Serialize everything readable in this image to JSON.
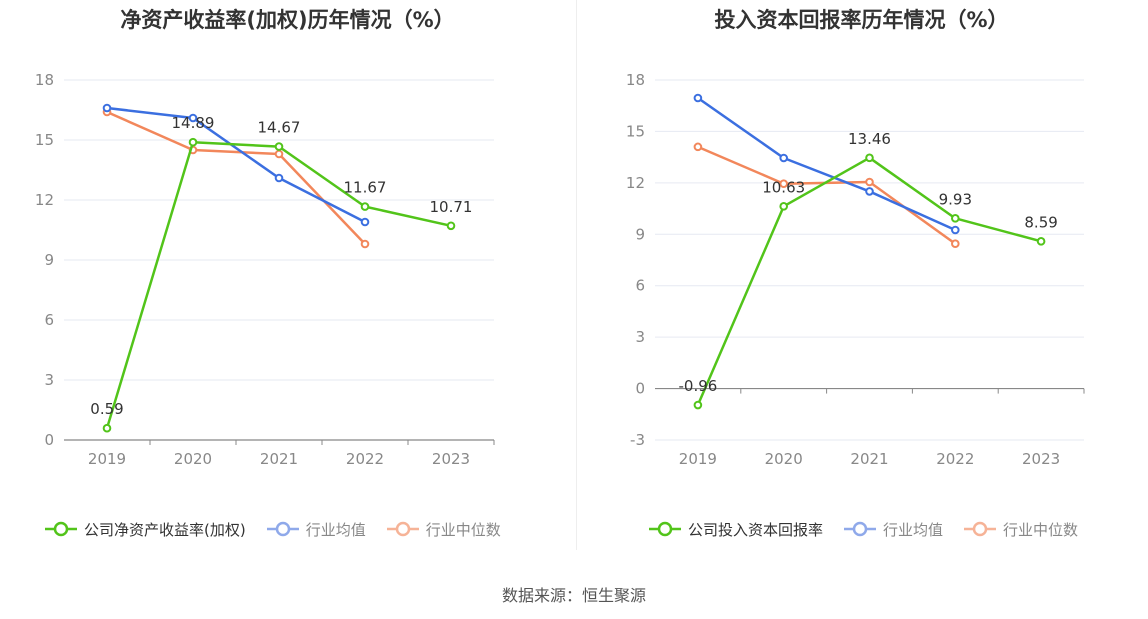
{
  "source_label": "数据来源：恒生聚源",
  "colors": {
    "company": "#52c41a",
    "avg": "#3b6fe0",
    "median": "#f2875b"
  },
  "chart_data": [
    {
      "type": "line",
      "title": "净资产收益率(加权)历年情况（%）",
      "categories": [
        "2019",
        "2020",
        "2021",
        "2022",
        "2023"
      ],
      "ylim": [
        0,
        18
      ],
      "yticks": [
        0,
        3,
        6,
        9,
        12,
        15,
        18
      ],
      "grid": true,
      "legend_position": "bottom",
      "series": [
        {
          "name": "公司净资产收益率(加权)",
          "key": "company",
          "values": [
            0.59,
            14.89,
            14.67,
            11.67,
            10.71
          ],
          "labels": [
            "0.59",
            "14.89",
            "14.67",
            "11.67",
            "10.71"
          ]
        },
        {
          "name": "行业均值",
          "key": "avg",
          "values": [
            16.6,
            16.1,
            13.1,
            10.9,
            null
          ]
        },
        {
          "name": "行业中位数",
          "key": "median",
          "values": [
            16.4,
            14.5,
            14.3,
            9.8,
            null
          ]
        }
      ]
    },
    {
      "type": "line",
      "title": "投入资本回报率历年情况（%）",
      "categories": [
        "2019",
        "2020",
        "2021",
        "2022",
        "2023"
      ],
      "ylim": [
        -3,
        18
      ],
      "yticks": [
        -3,
        0,
        3,
        6,
        9,
        12,
        15,
        18
      ],
      "grid": true,
      "legend_position": "bottom",
      "series": [
        {
          "name": "公司投入资本回报率",
          "key": "company",
          "values": [
            -0.96,
            10.63,
            13.46,
            9.93,
            8.59
          ],
          "labels": [
            "-0.96",
            "10.63",
            "13.46",
            "9.93",
            "8.59"
          ]
        },
        {
          "name": "行业均值",
          "key": "avg",
          "values": [
            16.95,
            13.45,
            11.5,
            9.25,
            null
          ]
        },
        {
          "name": "行业中位数",
          "key": "median",
          "values": [
            14.1,
            11.95,
            12.05,
            8.45,
            null
          ]
        }
      ]
    }
  ]
}
